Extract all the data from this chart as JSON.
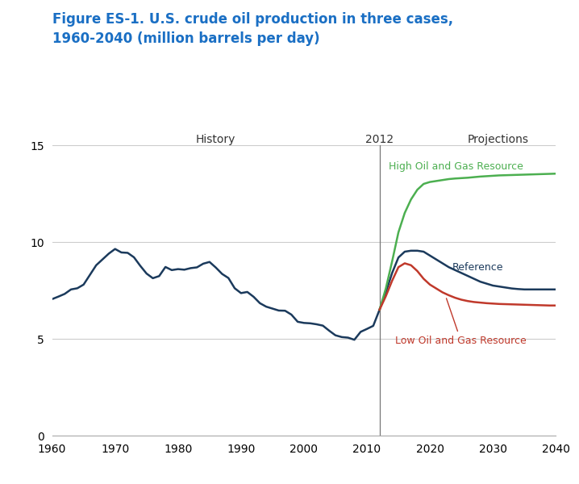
{
  "title_line1": "Figure ES-1. U.S. crude oil production in three cases,",
  "title_line2": "1960-2040 (million barrels per day)",
  "title_color": "#1A6FC4",
  "history_label": "History",
  "projections_label": "Projections",
  "split_year": 2012,
  "split_year_label": "2012",
  "xlim": [
    1960,
    2040
  ],
  "ylim": [
    0,
    15
  ],
  "yticks": [
    0,
    5,
    10,
    15
  ],
  "xticks": [
    1960,
    1970,
    1980,
    1990,
    2000,
    2010,
    2020,
    2030,
    2040
  ],
  "ref_color": "#1B3A5C",
  "high_color": "#4CAF50",
  "low_color": "#C0392B",
  "history_color": "#1B3A5C",
  "history": {
    "years": [
      1960,
      1961,
      1962,
      1963,
      1964,
      1965,
      1966,
      1967,
      1968,
      1969,
      1970,
      1971,
      1972,
      1973,
      1974,
      1975,
      1976,
      1977,
      1978,
      1979,
      1980,
      1981,
      1982,
      1983,
      1984,
      1985,
      1986,
      1987,
      1988,
      1989,
      1990,
      1991,
      1992,
      1993,
      1994,
      1995,
      1996,
      1997,
      1998,
      1999,
      2000,
      2001,
      2002,
      2003,
      2004,
      2005,
      2006,
      2007,
      2008,
      2009,
      2010,
      2011,
      2012
    ],
    "values": [
      7.05,
      7.18,
      7.32,
      7.55,
      7.61,
      7.8,
      8.3,
      8.8,
      9.1,
      9.4,
      9.64,
      9.46,
      9.44,
      9.21,
      8.77,
      8.37,
      8.13,
      8.24,
      8.71,
      8.55,
      8.6,
      8.57,
      8.65,
      8.69,
      8.88,
      8.97,
      8.68,
      8.35,
      8.14,
      7.61,
      7.36,
      7.42,
      7.17,
      6.84,
      6.66,
      6.56,
      6.46,
      6.45,
      6.25,
      5.88,
      5.82,
      5.8,
      5.75,
      5.68,
      5.42,
      5.18,
      5.09,
      5.06,
      4.95,
      5.36,
      5.51,
      5.67,
      6.5
    ]
  },
  "reference": {
    "years": [
      2012,
      2013,
      2014,
      2015,
      2016,
      2017,
      2018,
      2019,
      2020,
      2021,
      2022,
      2023,
      2024,
      2025,
      2026,
      2027,
      2028,
      2029,
      2030,
      2031,
      2032,
      2033,
      2034,
      2035,
      2036,
      2037,
      2038,
      2039,
      2040
    ],
    "values": [
      6.5,
      7.4,
      8.4,
      9.2,
      9.5,
      9.55,
      9.55,
      9.5,
      9.3,
      9.1,
      8.9,
      8.7,
      8.55,
      8.4,
      8.25,
      8.1,
      7.95,
      7.85,
      7.75,
      7.7,
      7.65,
      7.6,
      7.57,
      7.55,
      7.55,
      7.55,
      7.55,
      7.55,
      7.55
    ]
  },
  "high": {
    "years": [
      2012,
      2013,
      2014,
      2015,
      2016,
      2017,
      2018,
      2019,
      2020,
      2021,
      2022,
      2023,
      2024,
      2025,
      2026,
      2027,
      2028,
      2029,
      2030,
      2031,
      2032,
      2033,
      2034,
      2035,
      2036,
      2037,
      2038,
      2039,
      2040
    ],
    "values": [
      6.5,
      7.6,
      9.0,
      10.5,
      11.5,
      12.2,
      12.7,
      13.0,
      13.1,
      13.15,
      13.2,
      13.25,
      13.28,
      13.3,
      13.32,
      13.35,
      13.38,
      13.4,
      13.42,
      13.44,
      13.45,
      13.46,
      13.47,
      13.48,
      13.49,
      13.5,
      13.51,
      13.52,
      13.53
    ]
  },
  "low": {
    "years": [
      2012,
      2013,
      2014,
      2015,
      2016,
      2017,
      2018,
      2019,
      2020,
      2021,
      2022,
      2023,
      2024,
      2025,
      2026,
      2027,
      2028,
      2029,
      2030,
      2031,
      2032,
      2033,
      2034,
      2035,
      2036,
      2037,
      2038,
      2039,
      2040
    ],
    "values": [
      6.5,
      7.2,
      8.0,
      8.7,
      8.9,
      8.8,
      8.5,
      8.1,
      7.8,
      7.6,
      7.4,
      7.25,
      7.12,
      7.02,
      6.95,
      6.9,
      6.87,
      6.84,
      6.82,
      6.8,
      6.79,
      6.78,
      6.77,
      6.76,
      6.75,
      6.74,
      6.73,
      6.72,
      6.72
    ]
  },
  "high_label": "High Oil and Gas Resource",
  "ref_label": "Reference",
  "low_label": "Low Oil and Gas Resource",
  "annotation_line_color": "#C0392B",
  "split_line_color": "#777777",
  "grid_color": "#cccccc",
  "bg_color": "#ffffff"
}
